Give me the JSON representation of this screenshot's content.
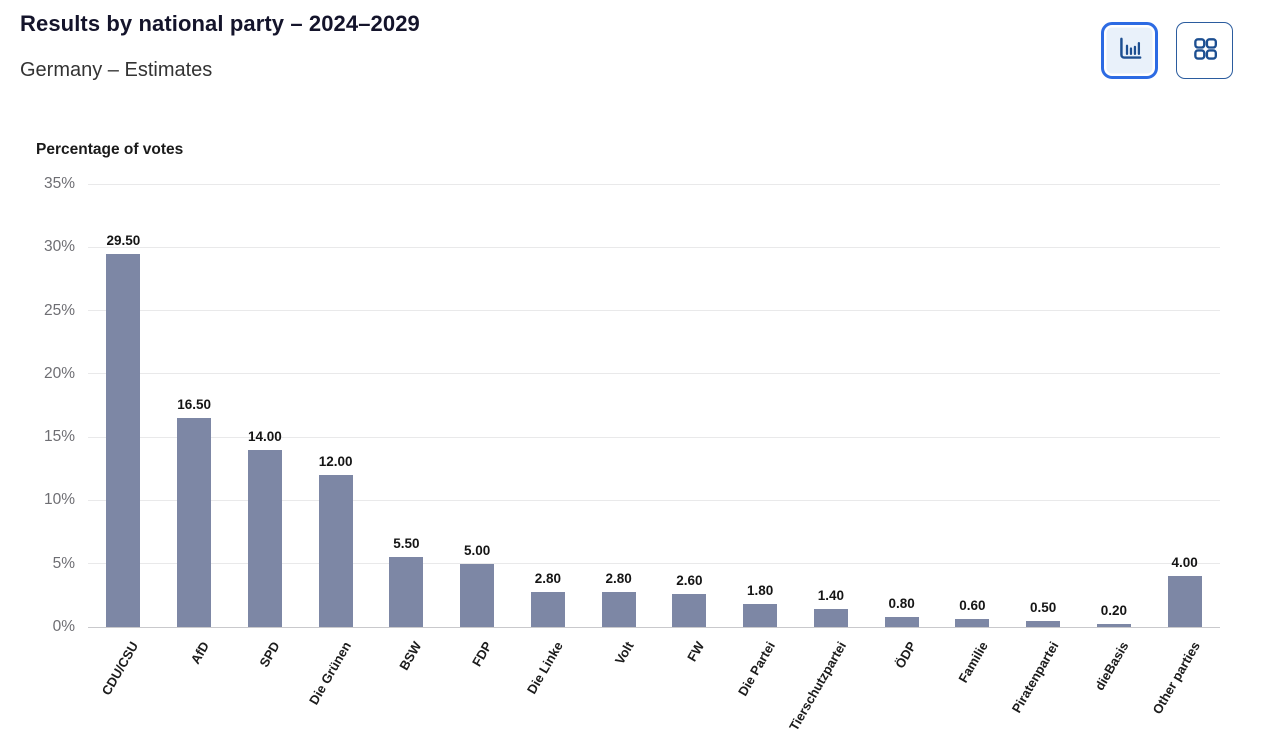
{
  "header": {
    "title": "Results by national party – 2024–2029",
    "subtitle": "Germany – Estimates"
  },
  "toolbar": {
    "buttons": [
      {
        "name": "bar-chart-view",
        "icon": "bar-chart-icon",
        "active": true
      },
      {
        "name": "grid-view",
        "icon": "grid-icon",
        "active": false
      }
    ]
  },
  "colors": {
    "bar": "#7d87a5",
    "accent_blue": "#2d6be3",
    "icon_navy": "#1d4f91",
    "active_button_bg": "#e9f1fa",
    "grid_line": "#e9e9ea",
    "axis_line": "#c9c9cc",
    "tick_text": "#6e6e73",
    "title_text": "#14142b"
  },
  "chart_data": {
    "type": "bar",
    "title": "Percentage of votes",
    "categories": [
      "CDU/CSU",
      "AfD",
      "SPD",
      "Die Grünen",
      "BSW",
      "FDP",
      "Die Linke",
      "Volt",
      "FW",
      "Die Partei",
      "Tierschutzpartei",
      "ÖDP",
      "Familie",
      "Piratenpartei",
      "dieBasis",
      "Other parties"
    ],
    "values": [
      29.5,
      16.5,
      14.0,
      12.0,
      5.5,
      5.0,
      2.8,
      2.8,
      2.6,
      1.8,
      1.4,
      0.8,
      0.6,
      0.5,
      0.2,
      4.0
    ],
    "value_labels": [
      "29.50",
      "16.50",
      "14.00",
      "12.00",
      "5.50",
      "5.00",
      "2.80",
      "2.80",
      "2.60",
      "1.80",
      "1.40",
      "0.80",
      "0.60",
      "0.50",
      "0.20",
      "4.00"
    ],
    "xlabel": "",
    "ylabel": "Percentage of votes",
    "ylim": [
      0,
      35
    ],
    "ytick_step": 5,
    "ytick_suffix": "%",
    "grid": true,
    "legend": false,
    "bar_color": "#7d87a5"
  }
}
